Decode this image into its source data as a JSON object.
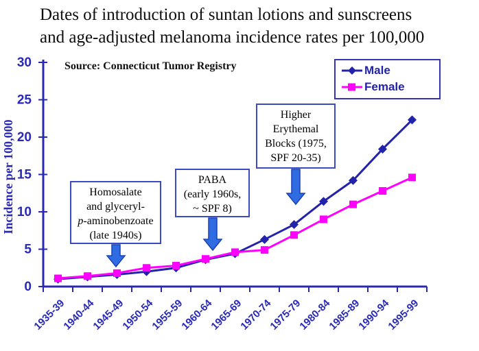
{
  "title": {
    "line1": "Dates of introduction of suntan lotions and sunscreens",
    "line2": "and age-adjusted melanoma incidence rates per 100,000"
  },
  "source_note": "Source: Connecticut Tumor Registry",
  "legend": {
    "male_label": "Male",
    "female_label": "Female"
  },
  "annotations": [
    {
      "id": "homosalate",
      "lines": [
        "Homosalate",
        "and glyceryl-",
        "p-aminobenzoate",
        "(late 1940s)"
      ]
    },
    {
      "id": "paba",
      "lines": [
        "PABA",
        "(early 1960s,",
        "~ SPF 8)"
      ]
    },
    {
      "id": "erythemal",
      "lines": [
        "Higher",
        "Erythemal",
        "Blocks (1975,",
        "SPF 20-35)"
      ]
    }
  ],
  "colors": {
    "male": "#2222aa",
    "female": "#ff00ff",
    "axis": "#2929b0",
    "tick_label": "#2929b8",
    "ylabel_text": "#2929b8",
    "legend_border": "#3333b3",
    "legend_text": "#2222aa",
    "annotation_border": "#3a4ac0",
    "arrow_fill": "#2f6ce2",
    "arrow_edge": "#1b41b5",
    "title_text": "#0d0d0d"
  },
  "chart_data": {
    "type": "line",
    "title": "Dates of introduction of suntan lotions and sunscreens and age-adjusted melanoma incidence rates per 100,000",
    "categories": [
      "1935-39",
      "1940-44",
      "1945-49",
      "1950-54",
      "1955-59",
      "1960-64",
      "1965-69",
      "1970-74",
      "1975-79",
      "1980-84",
      "1985-89",
      "1990-94",
      "1995-99"
    ],
    "series": [
      {
        "name": "Male",
        "marker": "diamond",
        "values": [
          1.0,
          1.3,
          1.6,
          2.0,
          2.5,
          3.6,
          4.4,
          6.3,
          8.3,
          11.4,
          14.2,
          18.4,
          22.3
        ]
      },
      {
        "name": "Female",
        "marker": "square",
        "values": [
          1.1,
          1.4,
          1.8,
          2.5,
          2.8,
          3.7,
          4.6,
          4.9,
          6.9,
          9.0,
          11.0,
          12.8,
          14.6
        ]
      }
    ],
    "xlabel": "",
    "ylabel": "Incidence per 100,000",
    "ylim": [
      0,
      30
    ],
    "yticks": [
      0,
      5,
      10,
      15,
      20,
      25,
      30
    ],
    "legend_position": "top-right",
    "grid": false
  }
}
